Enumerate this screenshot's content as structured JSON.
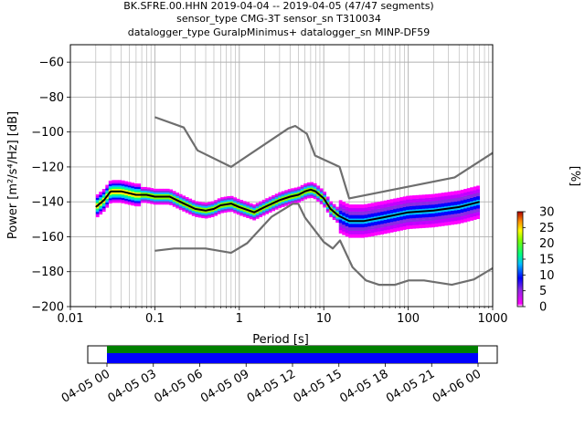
{
  "chart_data": [
    {
      "type": "heatmap",
      "title_lines": [
        "BK.SFRE.00.HHN   2019-04-04 -- 2019-04-05  (47/47 segments)",
        "sensor_type CMG-3T sensor_sn T310034",
        "datalogger_type GuralpMinimus+ datalogger_sn MINP-DF59"
      ],
      "xlabel": "Period [s]",
      "ylabel": "Power [m²/s⁴/Hz] [dB]",
      "xscale": "log",
      "xlim": [
        0.01,
        1000
      ],
      "ylim": [
        -200,
        -50
      ],
      "grid": true,
      "xtick_labels": [
        "0.01",
        "0.1",
        "1",
        "10",
        "100",
        "1000"
      ],
      "ytick_values": [
        -200,
        -180,
        -160,
        -140,
        -120,
        -100,
        -80,
        -60
      ],
      "ytick_labels": [
        "−200",
        "−180",
        "−160",
        "−140",
        "−120",
        "−100",
        "−80",
        "−60"
      ],
      "colorbar": {
        "label": "[%]",
        "range": [
          0,
          30
        ],
        "tick_values": [
          0,
          5,
          10,
          15,
          20,
          25,
          30
        ],
        "tick_labels": [
          "0",
          "5",
          "10",
          "15",
          "20",
          "25",
          "30"
        ]
      },
      "series": [
        {
          "role": "mean",
          "color": "#000000",
          "x": [
            0.02,
            0.025,
            0.03,
            0.04,
            0.06,
            0.08,
            0.1,
            0.15,
            0.2,
            0.3,
            0.4,
            0.5,
            0.6,
            0.8,
            1,
            1.5,
            2,
            3,
            4,
            5,
            6,
            7,
            8,
            10,
            12,
            15,
            20,
            30,
            50,
            100,
            200,
            400,
            700
          ],
          "y": [
            -143,
            -139,
            -134,
            -134,
            -136,
            -136,
            -137,
            -137,
            -140,
            -144,
            -145,
            -144,
            -142,
            -141,
            -143,
            -146,
            -143,
            -139,
            -137,
            -136,
            -134,
            -133,
            -134,
            -138,
            -144,
            -148,
            -151,
            -151,
            -149,
            -146,
            -145,
            -143,
            -140
          ]
        },
        {
          "role": "noise-model-high",
          "color": "#6e6e6e",
          "x": [
            0.1,
            0.22,
            0.32,
            0.8,
            3.8,
            4.6,
            6.3,
            7.9,
            15.4,
            20,
            354.8,
            1000
          ],
          "y": [
            -91.5,
            -97.4,
            -110.5,
            -120,
            -98,
            -96.5,
            -101,
            -113.5,
            -120,
            -138,
            -126,
            -112
          ]
        },
        {
          "role": "noise-model-low",
          "color": "#6e6e6e",
          "x": [
            0.1,
            0.17,
            0.4,
            0.8,
            1.24,
            2.4,
            4.3,
            5,
            6,
            10,
            12.8,
            15.6,
            21.9,
            31.6,
            45,
            70,
            101,
            154,
            328,
            600,
            1000
          ],
          "y": [
            -168,
            -166.7,
            -166.7,
            -169.2,
            -163.7,
            -148.6,
            -141.1,
            -141.1,
            -149,
            -163,
            -166.7,
            -162.1,
            -177.5,
            -185,
            -187.5,
            -187.5,
            -185,
            -185,
            -187.5,
            -184.4,
            -178
          ]
        }
      ]
    },
    {
      "type": "timeline",
      "range_labels": [
        "04-05 00",
        "04-05 03",
        "04-05 06",
        "04-05 09",
        "04-05 12",
        "04-05 15",
        "04-05 18",
        "04-05 21",
        "04-06 00"
      ],
      "bands": [
        {
          "label": "",
          "color": "#008000"
        },
        {
          "label": "",
          "color": "#0000ff"
        }
      ]
    }
  ],
  "colors": {
    "noise_model": "#6e6e6e",
    "mean_line": "#000000",
    "grid": "#b0b0b0",
    "band_top": "#008000",
    "band_bottom": "#0000ff"
  }
}
